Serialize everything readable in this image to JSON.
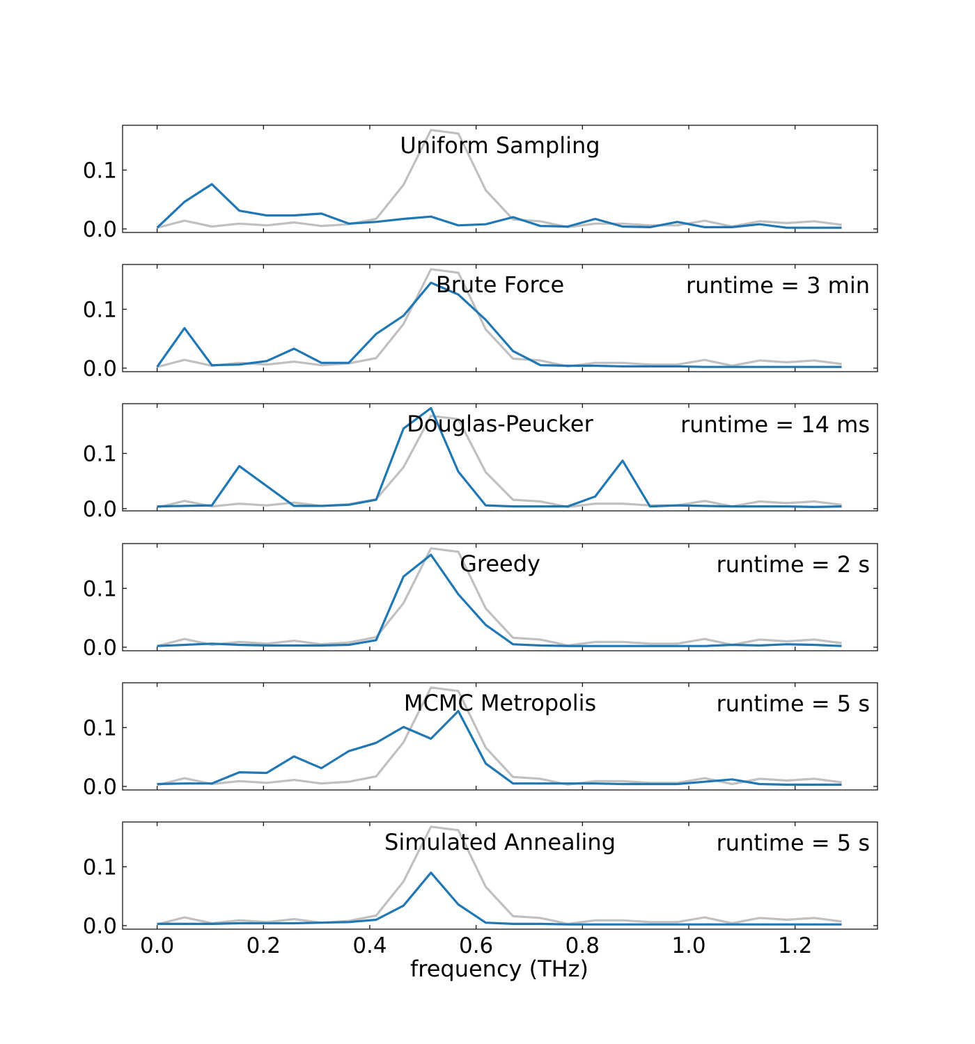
{
  "chart_data": {
    "type": "line",
    "xlabel": "frequency (THz)",
    "xlim": [
      -0.065,
      1.355
    ],
    "xticks": [
      0.0,
      0.2,
      0.4,
      0.6,
      0.8,
      1.0,
      1.2
    ],
    "xtick_labels": [
      "0.0",
      "0.2",
      "0.4",
      "0.6",
      "0.8",
      "1.0",
      "1.2"
    ],
    "yticks": [
      0.0,
      0.1
    ],
    "ytick_labels": [
      "0.0",
      "0.1"
    ],
    "colors": {
      "reference": "#c0c0c0",
      "approximation": "#1f77b4"
    },
    "x": [
      0.0,
      0.0515,
      0.103,
      0.1545,
      0.206,
      0.2575,
      0.309,
      0.3605,
      0.412,
      0.4635,
      0.515,
      0.5665,
      0.618,
      0.6695,
      0.721,
      0.7725,
      0.824,
      0.8755,
      0.927,
      0.9785,
      1.03,
      1.0815,
      1.133,
      1.1845,
      1.236,
      1.2875
    ],
    "reference": [
      0.002,
      0.014,
      0.004,
      0.009,
      0.006,
      0.011,
      0.005,
      0.008,
      0.017,
      0.075,
      0.168,
      0.162,
      0.066,
      0.016,
      0.013,
      0.003,
      0.009,
      0.009,
      0.006,
      0.006,
      0.014,
      0.004,
      0.013,
      0.01,
      0.013,
      0.007
    ],
    "panels": [
      {
        "title": "Uniform Sampling",
        "runtime": "",
        "ylim": [
          -0.006,
          0.176
        ],
        "values": [
          0.002,
          0.046,
          0.076,
          0.031,
          0.023,
          0.023,
          0.026,
          0.009,
          0.012,
          0.017,
          0.021,
          0.006,
          0.008,
          0.02,
          0.005,
          0.004,
          0.017,
          0.004,
          0.003,
          0.012,
          0.003,
          0.003,
          0.008,
          0.002,
          0.002,
          0.002
        ]
      },
      {
        "title": "Brute Force",
        "runtime": "runtime = 3 min",
        "ylim": [
          -0.006,
          0.176
        ],
        "values": [
          0.002,
          0.068,
          0.005,
          0.006,
          0.012,
          0.033,
          0.009,
          0.009,
          0.058,
          0.089,
          0.145,
          0.125,
          0.082,
          0.029,
          0.005,
          0.004,
          0.004,
          0.003,
          0.003,
          0.003,
          0.002,
          0.002,
          0.002,
          0.002,
          0.002,
          0.002
        ]
      },
      {
        "title": "Douglas-Peucker",
        "runtime": "runtime = 14 ms",
        "ylim": [
          -0.004,
          0.19
        ],
        "values": [
          0.004,
          0.005,
          0.006,
          0.077,
          0.041,
          0.005,
          0.005,
          0.007,
          0.016,
          0.145,
          0.182,
          0.067,
          0.006,
          0.004,
          0.004,
          0.004,
          0.022,
          0.087,
          0.004,
          0.006,
          0.005,
          0.004,
          0.004,
          0.004,
          0.003,
          0.004
        ]
      },
      {
        "title": "Greedy",
        "runtime": "runtime = 2 s",
        "ylim": [
          -0.006,
          0.176
        ],
        "values": [
          0.002,
          0.004,
          0.006,
          0.004,
          0.003,
          0.003,
          0.003,
          0.004,
          0.012,
          0.12,
          0.157,
          0.09,
          0.038,
          0.005,
          0.003,
          0.002,
          0.002,
          0.002,
          0.002,
          0.002,
          0.002,
          0.004,
          0.003,
          0.005,
          0.004,
          0.002
        ]
      },
      {
        "title": "MCMC Metropolis",
        "runtime": "runtime = 5 s",
        "ylim": [
          -0.006,
          0.176
        ],
        "values": [
          0.004,
          0.005,
          0.005,
          0.024,
          0.023,
          0.051,
          0.031,
          0.06,
          0.074,
          0.101,
          0.081,
          0.128,
          0.039,
          0.005,
          0.005,
          0.005,
          0.005,
          0.004,
          0.004,
          0.004,
          0.008,
          0.012,
          0.004,
          0.003,
          0.003,
          0.003
        ]
      },
      {
        "title": "Simulated Annealing",
        "runtime": "runtime = 5 s",
        "ylim": [
          -0.006,
          0.176
        ],
        "values": [
          0.003,
          0.003,
          0.003,
          0.004,
          0.004,
          0.004,
          0.005,
          0.006,
          0.01,
          0.034,
          0.09,
          0.036,
          0.005,
          0.003,
          0.003,
          0.002,
          0.002,
          0.002,
          0.002,
          0.002,
          0.002,
          0.002,
          0.002,
          0.002,
          0.002,
          0.002
        ]
      }
    ]
  }
}
